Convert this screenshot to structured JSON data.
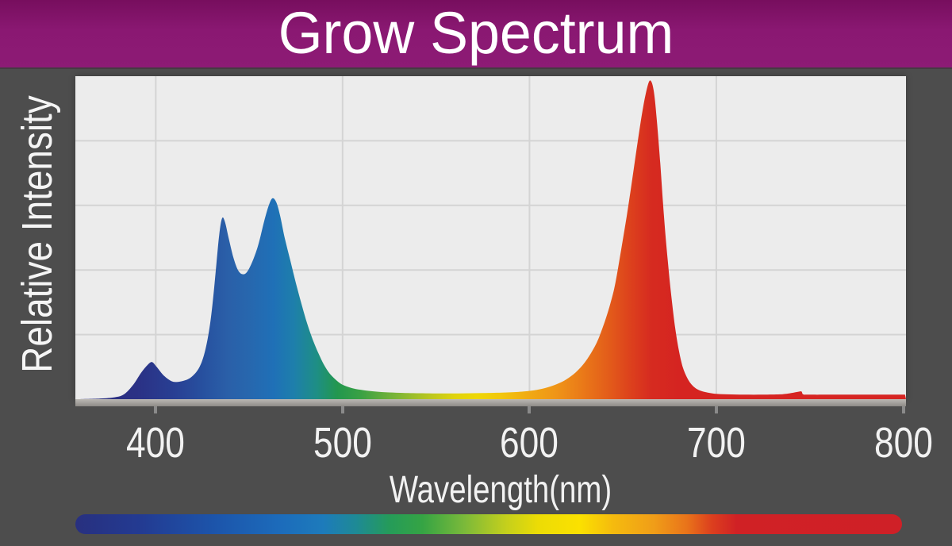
{
  "header": {
    "title": "Grow Spectrum"
  },
  "colors": {
    "background": "#4d4d4d",
    "header_top": "#770e5e",
    "header_mid": "#8a1872",
    "header_bottom": "#8d1b75",
    "title_text": "#ffffff",
    "plot_bg": "#ececec",
    "grid": "#d4d4d4",
    "axis_bar_top": "#bcb9b4",
    "axis_bar_bottom": "#8f8c88",
    "tick": "#8a8a8a",
    "label_text": "#f2f2f2"
  },
  "chart_data": {
    "type": "area",
    "title": "Grow Spectrum",
    "xlabel": "Wavelength(nm)",
    "ylabel": "Relative Intensity",
    "xlim": [
      357,
      801.5
    ],
    "ylim": [
      0,
      1
    ],
    "x_ticks": [
      400,
      500,
      600,
      700,
      800
    ],
    "grid_rows": 5,
    "legend": "none",
    "peaks_nm": {
      "violet_bump": 398,
      "blue_peak_1": 435,
      "blue_peak_2": 462,
      "red_peak": 665,
      "far_red_blip": 745
    },
    "series": [
      {
        "name": "relative_intensity",
        "points": [
          [
            357,
            0
          ],
          [
            370,
            0.002
          ],
          [
            378,
            0.006
          ],
          [
            383,
            0.015
          ],
          [
            388,
            0.045
          ],
          [
            392,
            0.08
          ],
          [
            395.5,
            0.105
          ],
          [
            398,
            0.115
          ],
          [
            400.5,
            0.1
          ],
          [
            404,
            0.075
          ],
          [
            408,
            0.057
          ],
          [
            411,
            0.053
          ],
          [
            415,
            0.057
          ],
          [
            419,
            0.068
          ],
          [
            423,
            0.095
          ],
          [
            426,
            0.14
          ],
          [
            428.5,
            0.21
          ],
          [
            430.5,
            0.3
          ],
          [
            432.5,
            0.42
          ],
          [
            434,
            0.51
          ],
          [
            435.5,
            0.56
          ],
          [
            437,
            0.55
          ],
          [
            439,
            0.5
          ],
          [
            441.5,
            0.44
          ],
          [
            444,
            0.4
          ],
          [
            446.5,
            0.387
          ],
          [
            449,
            0.395
          ],
          [
            452,
            0.43
          ],
          [
            455,
            0.48
          ],
          [
            458,
            0.55
          ],
          [
            460.5,
            0.6
          ],
          [
            462.5,
            0.622
          ],
          [
            464.5,
            0.61
          ],
          [
            466.5,
            0.57
          ],
          [
            469,
            0.5
          ],
          [
            472,
            0.43
          ],
          [
            475,
            0.36
          ],
          [
            478,
            0.295
          ],
          [
            481,
            0.235
          ],
          [
            484,
            0.185
          ],
          [
            487,
            0.143
          ],
          [
            490,
            0.107
          ],
          [
            493,
            0.08
          ],
          [
            496,
            0.062
          ],
          [
            499,
            0.048
          ],
          [
            502,
            0.04
          ],
          [
            506,
            0.033
          ],
          [
            511,
            0.028
          ],
          [
            517,
            0.024
          ],
          [
            525,
            0.021
          ],
          [
            535,
            0.019
          ],
          [
            548,
            0.018
          ],
          [
            562,
            0.018
          ],
          [
            575,
            0.019
          ],
          [
            588,
            0.021
          ],
          [
            597,
            0.024
          ],
          [
            604,
            0.029
          ],
          [
            610,
            0.037
          ],
          [
            616,
            0.05
          ],
          [
            621,
            0.066
          ],
          [
            626,
            0.09
          ],
          [
            631,
            0.125
          ],
          [
            636,
            0.175
          ],
          [
            640,
            0.235
          ],
          [
            643.5,
            0.3
          ],
          [
            646,
            0.36
          ],
          [
            649,
            0.46
          ],
          [
            652,
            0.565
          ],
          [
            655,
            0.68
          ],
          [
            658,
            0.8
          ],
          [
            661,
            0.91
          ],
          [
            663.5,
            0.975
          ],
          [
            665,
            0.985
          ],
          [
            666.5,
            0.955
          ],
          [
            668,
            0.875
          ],
          [
            670,
            0.73
          ],
          [
            672,
            0.565
          ],
          [
            674,
            0.43
          ],
          [
            676,
            0.315
          ],
          [
            678,
            0.22
          ],
          [
            680,
            0.15
          ],
          [
            682,
            0.1
          ],
          [
            684.5,
            0.065
          ],
          [
            687,
            0.044
          ],
          [
            690,
            0.03
          ],
          [
            694,
            0.022
          ],
          [
            699,
            0.017
          ],
          [
            706,
            0.015
          ],
          [
            715,
            0.014
          ],
          [
            725,
            0.014
          ],
          [
            734,
            0.015
          ],
          [
            739,
            0.018
          ],
          [
            743,
            0.022
          ],
          [
            745.5,
            0.024
          ],
          [
            746.5,
            0.015
          ],
          [
            750,
            0.014
          ],
          [
            765,
            0.014
          ],
          [
            785,
            0.014
          ],
          [
            801,
            0.014
          ]
        ]
      }
    ],
    "spectral_fill_gradient": [
      {
        "nm": 357,
        "color": "#2b2d7c"
      },
      {
        "nm": 390,
        "color": "#2b3185"
      },
      {
        "nm": 410,
        "color": "#283f93"
      },
      {
        "nm": 425,
        "color": "#27509f"
      },
      {
        "nm": 438,
        "color": "#2a5fa8"
      },
      {
        "nm": 450,
        "color": "#2767ae"
      },
      {
        "nm": 463,
        "color": "#1f70b7"
      },
      {
        "nm": 474,
        "color": "#1e7fab"
      },
      {
        "nm": 486,
        "color": "#1e8e85"
      },
      {
        "nm": 497,
        "color": "#22974f"
      },
      {
        "nm": 510,
        "color": "#3ba144"
      },
      {
        "nm": 528,
        "color": "#79b438"
      },
      {
        "nm": 545,
        "color": "#b5c521"
      },
      {
        "nm": 560,
        "color": "#e0d30d"
      },
      {
        "nm": 572,
        "color": "#eed705"
      },
      {
        "nm": 585,
        "color": "#f2c60c"
      },
      {
        "nm": 600,
        "color": "#f1a913"
      },
      {
        "nm": 614,
        "color": "#ef9517"
      },
      {
        "nm": 628,
        "color": "#ea7a18"
      },
      {
        "nm": 642,
        "color": "#e35d1a"
      },
      {
        "nm": 655,
        "color": "#dc3f1d"
      },
      {
        "nm": 665,
        "color": "#d62b20"
      },
      {
        "nm": 680,
        "color": "#d52421"
      },
      {
        "nm": 801,
        "color": "#d62522"
      }
    ],
    "colorbar_gradient": [
      {
        "offset": 0.0,
        "color": "#28307f"
      },
      {
        "offset": 0.08,
        "color": "#233b92"
      },
      {
        "offset": 0.17,
        "color": "#1c55ab"
      },
      {
        "offset": 0.25,
        "color": "#1c6cbb"
      },
      {
        "offset": 0.3,
        "color": "#1d7bbb"
      },
      {
        "offset": 0.34,
        "color": "#1e8a95"
      },
      {
        "offset": 0.38,
        "color": "#259b59"
      },
      {
        "offset": 0.42,
        "color": "#35a444"
      },
      {
        "offset": 0.47,
        "color": "#7ab93a"
      },
      {
        "offset": 0.52,
        "color": "#c3cf1d"
      },
      {
        "offset": 0.56,
        "color": "#ecdc05"
      },
      {
        "offset": 0.61,
        "color": "#fbe100"
      },
      {
        "offset": 0.65,
        "color": "#f5bb0e"
      },
      {
        "offset": 0.7,
        "color": "#f09d18"
      },
      {
        "offset": 0.74,
        "color": "#e9731a"
      },
      {
        "offset": 0.77,
        "color": "#dc3f1e"
      },
      {
        "offset": 0.8,
        "color": "#d02125"
      },
      {
        "offset": 1.0,
        "color": "#cf2027"
      }
    ]
  }
}
